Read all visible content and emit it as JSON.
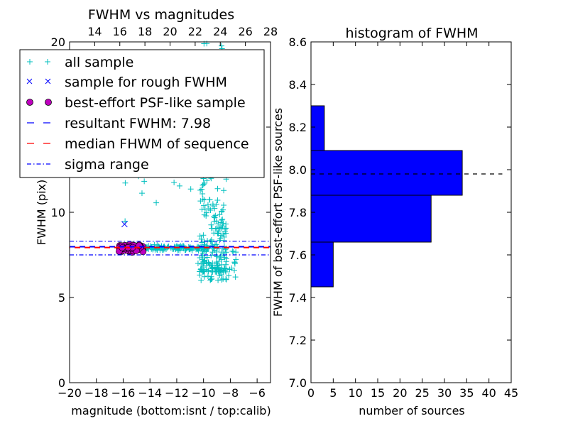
{
  "chart_data": [
    {
      "type": "scatter",
      "title": "FWHM vs magnitudes",
      "xlabel": "magnitude (bottom:isnt / top:calib)",
      "ylabel": "FWHM (pix)",
      "xlim": [
        -20,
        -5
      ],
      "ylim": [
        0,
        20
      ],
      "xticks": [
        -20,
        -18,
        -16,
        -14,
        -12,
        -10,
        -8,
        -6
      ],
      "xtick_labels": [
        "−20",
        "−18",
        "−16",
        "−14",
        "−12",
        "−10",
        "−8",
        "−6"
      ],
      "yticks": [
        0,
        5,
        10,
        15,
        20
      ],
      "ytick_labels": [
        "0",
        "5",
        "10",
        "15",
        "20"
      ],
      "top_xlim": [
        12,
        28
      ],
      "top_xticks": [
        14,
        16,
        18,
        20,
        22,
        24,
        26,
        28
      ],
      "top_xtick_labels": [
        "14",
        "16",
        "18",
        "20",
        "22",
        "24",
        "26",
        "28"
      ],
      "colors": {
        "all_sample": "#00bfbf",
        "rough_sample": "#0000ff",
        "psf_sample": "#bf00bf",
        "resultant_line": "#0000ff",
        "median_line": "#ff0000",
        "sigma_line": "#0000ff"
      },
      "series": [
        {
          "name": "all sample",
          "marker": "+",
          "note": "cloud of ~600 sources, dense band at FWHM ~7.9 for magnitude -16 to -10, vertical plume at magnitude -10 to -8 spanning FWHM ~6 to 20"
        },
        {
          "name": "sample for rough FWHM",
          "marker": "x",
          "points": [
            [
              -15.9,
              9.3
            ]
          ]
        },
        {
          "name": "best-effort PSF-like sample",
          "marker": "o",
          "x_range": [
            -16.5,
            -14.5
          ],
          "y_range": [
            7.6,
            8.15
          ]
        }
      ],
      "hlines": [
        {
          "name": "resultant FWHM",
          "y": 7.98,
          "style": "dashed",
          "color": "#0000ff"
        },
        {
          "name": "median FHWM of sequence",
          "y": 7.93,
          "style": "dashed",
          "color": "#ff0000"
        },
        {
          "name": "sigma range",
          "y": [
            7.5,
            8.3
          ],
          "style": "dashdot",
          "color": "#0000ff"
        }
      ],
      "legend": {
        "location": "upper-left",
        "entries": [
          "all sample",
          "sample for rough FWHM",
          "best-effort PSF-like sample",
          "resultant FWHM: 7.98",
          "median FHWM of sequence",
          "sigma range"
        ]
      }
    },
    {
      "type": "bar",
      "orientation": "horizontal",
      "title": "histogram of FWHM",
      "xlabel": "number of sources",
      "ylabel": "FWHM of best-effort PSF-like sources",
      "xlim": [
        0,
        45
      ],
      "ylim": [
        7.0,
        8.6
      ],
      "xticks": [
        0,
        5,
        10,
        15,
        20,
        25,
        30,
        35,
        40,
        45
      ],
      "xtick_labels": [
        "0",
        "5",
        "10",
        "15",
        "20",
        "25",
        "30",
        "35",
        "40",
        "45"
      ],
      "yticks": [
        7.0,
        7.2,
        7.4,
        7.6,
        7.8,
        8.0,
        8.2,
        8.4,
        8.6
      ],
      "ytick_labels": [
        "7.0",
        "7.2",
        "7.4",
        "7.6",
        "7.8",
        "8.0",
        "8.2",
        "8.4",
        "8.6"
      ],
      "bar_color": "#0000ff",
      "bins": [
        {
          "low": 7.45,
          "high": 7.66,
          "count": 5
        },
        {
          "low": 7.66,
          "high": 7.88,
          "count": 27
        },
        {
          "low": 7.88,
          "high": 8.09,
          "count": 34
        },
        {
          "low": 8.09,
          "high": 8.3,
          "count": 3
        }
      ],
      "reference_line": {
        "y": 7.98,
        "x_range": [
          0,
          43
        ],
        "style": "dashed",
        "color": "#000000"
      }
    }
  ]
}
